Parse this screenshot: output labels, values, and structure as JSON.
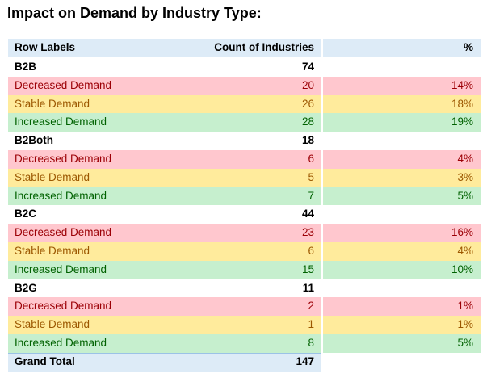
{
  "title": "Impact on Demand by Industry Type:",
  "table": {
    "header": [
      "Row Labels",
      "Count of Industries",
      "%"
    ],
    "groups": [
      {
        "label": "B2B",
        "count": 74,
        "rows": [
          {
            "label": "Decreased Demand",
            "count": 20,
            "pct": "14%"
          },
          {
            "label": "Stable Demand",
            "count": 26,
            "pct": "18%"
          },
          {
            "label": "Increased Demand",
            "count": 28,
            "pct": "19%"
          }
        ]
      },
      {
        "label": "B2Both",
        "count": 18,
        "rows": [
          {
            "label": "Decreased Demand",
            "count": 6,
            "pct": "4%"
          },
          {
            "label": "Stable Demand",
            "count": 5,
            "pct": "3%"
          },
          {
            "label": "Increased Demand",
            "count": 7,
            "pct": "5%"
          }
        ]
      },
      {
        "label": "B2C",
        "count": 44,
        "rows": [
          {
            "label": "Decreased Demand",
            "count": 23,
            "pct": "16%"
          },
          {
            "label": "Stable Demand",
            "count": 6,
            "pct": "4%"
          },
          {
            "label": "Increased Demand",
            "count": 15,
            "pct": "10%"
          }
        ]
      },
      {
        "label": "B2G",
        "count": 11,
        "rows": [
          {
            "label": "Decreased Demand",
            "count": 2,
            "pct": "1%"
          },
          {
            "label": "Stable Demand",
            "count": 1,
            "pct": "1%"
          },
          {
            "label": "Increased Demand",
            "count": 8,
            "pct": "5%"
          }
        ]
      }
    ],
    "total": {
      "label": "Grand Total",
      "count": 147
    }
  }
}
